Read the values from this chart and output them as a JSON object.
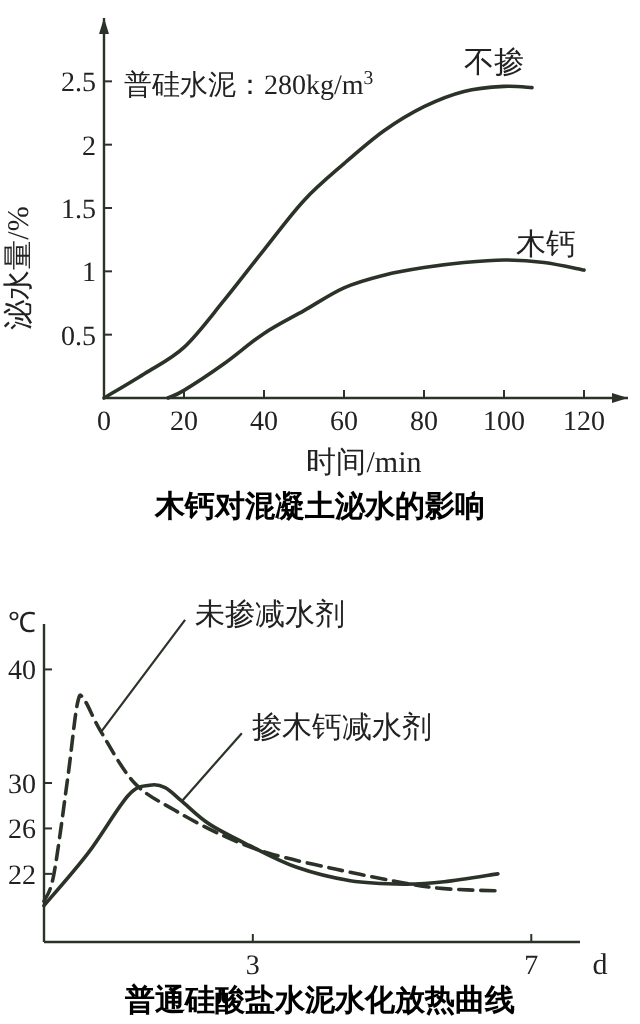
{
  "chart_data": [
    {
      "type": "line",
      "title": "木钙对混凝土泌水的影响",
      "xlabel": "时间/min",
      "ylabel": "泌水量/%",
      "annotations": [
        "普硅水泥：280kg/m$^{3}$"
      ],
      "xlim": [
        0,
        131
      ],
      "ylim": [
        0,
        3.0
      ],
      "xticks": [
        0,
        20,
        40,
        60,
        80,
        100,
        120
      ],
      "yticks": [
        0.5,
        1.0,
        1.5,
        2.0,
        2.5
      ],
      "grid": false,
      "marker": "none",
      "series": [
        {
          "name": "不掺",
          "color": "#2b3328",
          "line_style": "solid",
          "x": [
            0,
            10,
            20,
            30,
            40,
            50,
            60,
            70,
            80,
            90,
            100,
            107
          ],
          "values": [
            0,
            0.19,
            0.4,
            0.77,
            1.17,
            1.56,
            1.85,
            2.11,
            2.3,
            2.42,
            2.46,
            2.45
          ]
        },
        {
          "name": "木钙",
          "color": "#2b3328",
          "line_style": "solid",
          "x": [
            16,
            20,
            30,
            40,
            50,
            60,
            70,
            80,
            90,
            100,
            110,
            120
          ],
          "values": [
            0,
            0.06,
            0.27,
            0.51,
            0.69,
            0.87,
            0.97,
            1.03,
            1.07,
            1.09,
            1.07,
            1.01
          ]
        }
      ]
    },
    {
      "type": "line",
      "title": "普通硅酸盐水泥水化放热曲线",
      "xlabel": "d",
      "ylabel": "℃",
      "xlim": [
        0,
        7.7
      ],
      "ylim": [
        16,
        44
      ],
      "xticks": [
        3,
        7
      ],
      "yticks": [
        22,
        26,
        30,
        40
      ],
      "grid": false,
      "marker": "none",
      "series": [
        {
          "name": "未掺减水剂",
          "color": "#2b3328",
          "line_style": "dashed",
          "x": [
            0,
            0.14,
            0.34,
            0.48,
            0.58,
            0.82,
            1.3,
            1.88,
            2.56,
            3.24,
            4.2,
            5.17,
            5.75,
            6.52
          ],
          "values": [
            19.6,
            21.9,
            30.4,
            37.0,
            37.3,
            34.5,
            30.0,
            27.6,
            25.4,
            23.8,
            22.4,
            21.2,
            20.7,
            20.5
          ]
        },
        {
          "name": "掺木钙减水剂",
          "color": "#2b3328",
          "line_style": "solid",
          "x": [
            0,
            0.63,
            1.21,
            1.52,
            1.74,
            1.98,
            2.37,
            2.95,
            3.62,
            4.4,
            5.17,
            5.75,
            6.52
          ],
          "values": [
            19.2,
            23.8,
            28.9,
            29.8,
            29.6,
            28.4,
            26.4,
            24.5,
            22.6,
            21.4,
            21.1,
            21.3,
            22.0
          ]
        }
      ]
    }
  ]
}
